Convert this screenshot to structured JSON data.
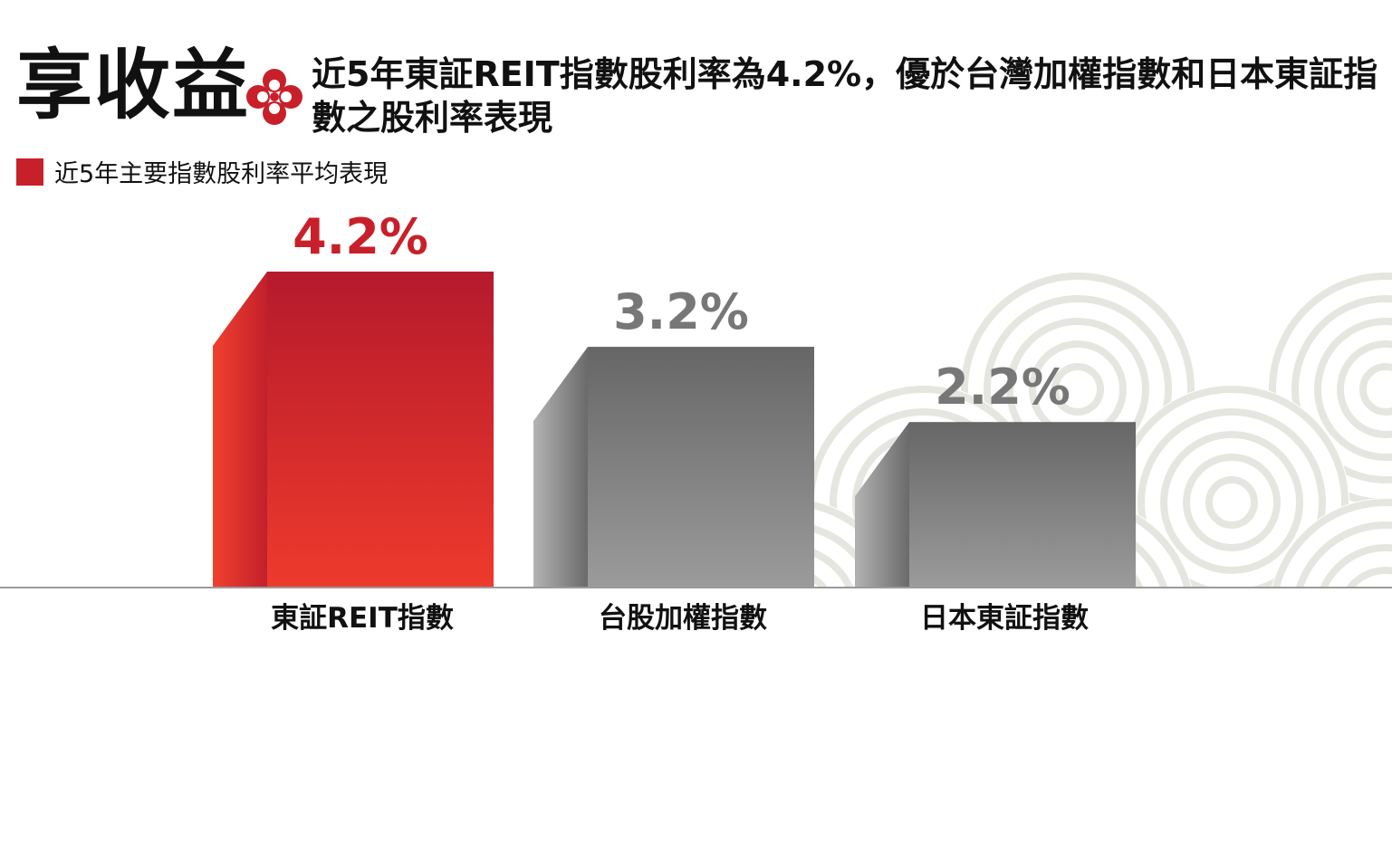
{
  "header": {
    "title": "享收益",
    "subtitle": "近5年東証REIT指數股利率為4.2%，優於台灣加權指數和日本東証指數之股利率表現",
    "icon": "red-flower-icon"
  },
  "colors": {
    "accent": "#c8202a",
    "red_bar_top": "#b51a2c",
    "red_bar_bottom": "#ee3a2c",
    "gray_bar_top": "#666666",
    "gray_bar_bottom": "#9b9b9b",
    "gray_label": "#777777",
    "pattern": "#e6e6e0"
  },
  "chart_data": {
    "type": "bar",
    "title": "",
    "xlabel": "",
    "ylabel": "",
    "ylim": [
      0,
      4.2
    ],
    "categories": [
      "東証REIT指數",
      "台股加權指數",
      "日本東証指數"
    ],
    "series": [
      {
        "name": "近5年主要指數股利率平均表現",
        "values": [
          4.2,
          3.2,
          2.2
        ],
        "labels": [
          "4.2%",
          "3.2%",
          "2.2%"
        ]
      }
    ],
    "legend": "top-left",
    "grid": false
  }
}
